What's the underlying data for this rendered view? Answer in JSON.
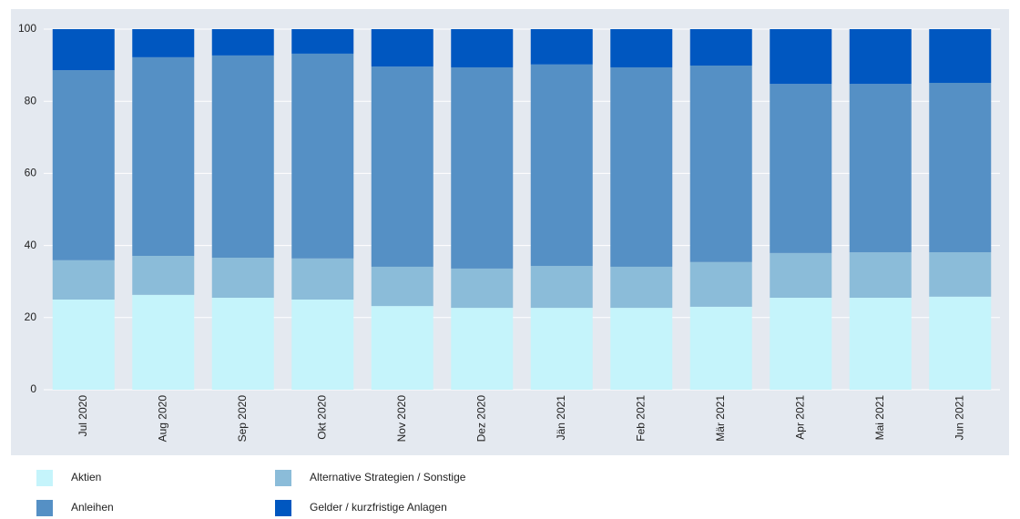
{
  "chart_data": {
    "type": "stacked-bar",
    "categories": [
      "Jul 2020",
      "Aug 2020",
      "Sep 2020",
      "Okt 2020",
      "Nov 2020",
      "Dez 2020",
      "Jän 2021",
      "Feb 2021",
      "Mär 2021",
      "Apr 2021",
      "Mai 2021",
      "Jun 2021"
    ],
    "series": [
      {
        "name": "Aktien",
        "color": "#c5f4fb",
        "values": [
          25.0,
          26.3,
          25.5,
          25.0,
          23.2,
          22.7,
          22.7,
          22.7,
          23.0,
          25.5,
          25.5,
          25.8
        ]
      },
      {
        "name": "Alternative Strategien / Sonstige",
        "color": "#8bbcd9",
        "values": [
          10.9,
          10.8,
          11.1,
          11.4,
          10.9,
          10.9,
          11.6,
          11.4,
          12.4,
          12.4,
          12.6,
          12.3
        ]
      },
      {
        "name": "Anleihen",
        "color": "#5590c5",
        "values": [
          52.7,
          55.1,
          56.1,
          56.8,
          55.5,
          55.8,
          55.9,
          55.3,
          54.5,
          46.9,
          46.7,
          47.0
        ]
      },
      {
        "name": "Gelder / kurzfristige Anlagen",
        "color": "#0057c0",
        "values": [
          11.4,
          7.8,
          7.3,
          6.8,
          10.4,
          10.6,
          9.8,
          10.6,
          10.1,
          15.2,
          15.2,
          14.9
        ]
      }
    ],
    "ylim": [
      0,
      100
    ],
    "yticks": [
      0,
      20,
      40,
      60,
      80,
      100
    ],
    "grid": true
  }
}
